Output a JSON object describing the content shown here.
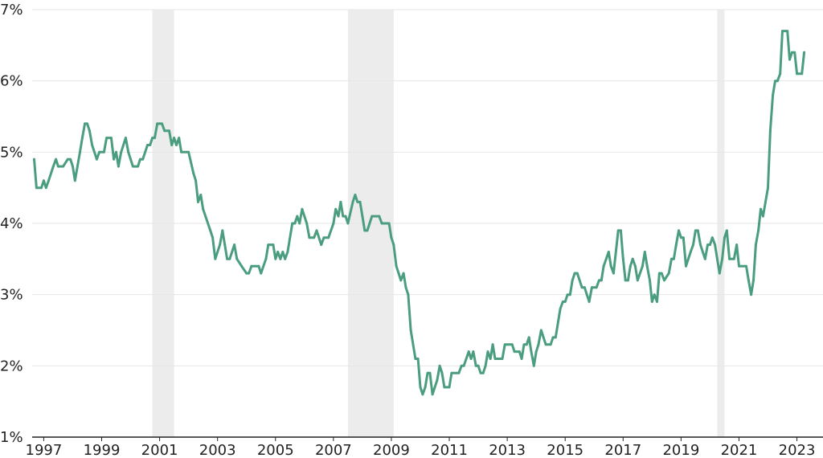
{
  "chart_data": {
    "type": "line",
    "title": "",
    "xlabel": "",
    "ylabel": "",
    "xlim": [
      1996.6,
      2023.9
    ],
    "ylim": [
      1,
      7
    ],
    "grid": true,
    "legend": "none",
    "y_ticks": [
      {
        "value": 1,
        "label": "1%"
      },
      {
        "value": 2,
        "label": "2%"
      },
      {
        "value": 3,
        "label": "3%"
      },
      {
        "value": 4,
        "label": "4%"
      },
      {
        "value": 5,
        "label": "5%"
      },
      {
        "value": 6,
        "label": "6%"
      },
      {
        "value": 7,
        "label": "7%"
      }
    ],
    "x_ticks": [
      {
        "value": 1997,
        "label": "1997"
      },
      {
        "value": 1999,
        "label": "1999"
      },
      {
        "value": 2001,
        "label": "2001"
      },
      {
        "value": 2003,
        "label": "2003"
      },
      {
        "value": 2005,
        "label": "2005"
      },
      {
        "value": 2007,
        "label": "2007"
      },
      {
        "value": 2009,
        "label": "2009"
      },
      {
        "value": 2011,
        "label": "2011"
      },
      {
        "value": 2013,
        "label": "2013"
      },
      {
        "value": 2015,
        "label": "2015"
      },
      {
        "value": 2017,
        "label": "2017"
      },
      {
        "value": 2019,
        "label": "2019"
      },
      {
        "value": 2021,
        "label": "2021"
      },
      {
        "value": 2023,
        "label": "2023"
      }
    ],
    "shaded_periods": [
      {
        "start": 2000.75,
        "end": 2001.5
      },
      {
        "start": 2007.5,
        "end": 2009.08
      },
      {
        "start": 2020.25,
        "end": 2020.5
      }
    ],
    "colors": {
      "line": "#4a9e7f",
      "shade": "#ececec",
      "grid": "#e6e6e6",
      "axis": "#222222"
    },
    "series": [
      {
        "points": [
          [
            1996.67,
            4.9
          ],
          [
            1996.75,
            4.5
          ],
          [
            1996.92,
            4.5
          ],
          [
            1997.0,
            4.6
          ],
          [
            1997.08,
            4.5
          ],
          [
            1997.17,
            4.6
          ],
          [
            1997.33,
            4.8
          ],
          [
            1997.42,
            4.9
          ],
          [
            1997.5,
            4.8
          ],
          [
            1997.67,
            4.8
          ],
          [
            1997.83,
            4.9
          ],
          [
            1997.92,
            4.9
          ],
          [
            1998.0,
            4.8
          ],
          [
            1998.08,
            4.6
          ],
          [
            1998.25,
            5.0
          ],
          [
            1998.33,
            5.2
          ],
          [
            1998.42,
            5.4
          ],
          [
            1998.5,
            5.4
          ],
          [
            1998.58,
            5.3
          ],
          [
            1998.67,
            5.1
          ],
          [
            1998.83,
            4.9
          ],
          [
            1998.92,
            5.0
          ],
          [
            1999.08,
            5.0
          ],
          [
            1999.17,
            5.2
          ],
          [
            1999.33,
            5.2
          ],
          [
            1999.42,
            4.9
          ],
          [
            1999.5,
            5.0
          ],
          [
            1999.58,
            4.8
          ],
          [
            1999.67,
            5.0
          ],
          [
            1999.83,
            5.2
          ],
          [
            1999.92,
            5.0
          ],
          [
            2000.0,
            4.9
          ],
          [
            2000.08,
            4.8
          ],
          [
            2000.25,
            4.8
          ],
          [
            2000.33,
            4.9
          ],
          [
            2000.42,
            4.9
          ],
          [
            2000.58,
            5.1
          ],
          [
            2000.67,
            5.1
          ],
          [
            2000.75,
            5.2
          ],
          [
            2000.83,
            5.2
          ],
          [
            2000.92,
            5.4
          ],
          [
            2001.0,
            5.4
          ],
          [
            2001.08,
            5.4
          ],
          [
            2001.17,
            5.3
          ],
          [
            2001.33,
            5.3
          ],
          [
            2001.42,
            5.1
          ],
          [
            2001.5,
            5.2
          ],
          [
            2001.58,
            5.1
          ],
          [
            2001.67,
            5.2
          ],
          [
            2001.75,
            5.0
          ],
          [
            2002.0,
            5.0
          ],
          [
            2002.17,
            4.7
          ],
          [
            2002.25,
            4.6
          ],
          [
            2002.33,
            4.3
          ],
          [
            2002.42,
            4.4
          ],
          [
            2002.5,
            4.2
          ],
          [
            2002.75,
            3.9
          ],
          [
            2002.83,
            3.8
          ],
          [
            2002.92,
            3.5
          ],
          [
            2003.08,
            3.7
          ],
          [
            2003.17,
            3.9
          ],
          [
            2003.25,
            3.7
          ],
          [
            2003.33,
            3.5
          ],
          [
            2003.42,
            3.5
          ],
          [
            2003.58,
            3.7
          ],
          [
            2003.67,
            3.5
          ],
          [
            2003.83,
            3.4
          ],
          [
            2004.0,
            3.3
          ],
          [
            2004.08,
            3.3
          ],
          [
            2004.17,
            3.4
          ],
          [
            2004.42,
            3.4
          ],
          [
            2004.5,
            3.3
          ],
          [
            2004.67,
            3.5
          ],
          [
            2004.75,
            3.7
          ],
          [
            2004.92,
            3.7
          ],
          [
            2005.0,
            3.5
          ],
          [
            2005.08,
            3.6
          ],
          [
            2005.17,
            3.5
          ],
          [
            2005.25,
            3.6
          ],
          [
            2005.33,
            3.5
          ],
          [
            2005.42,
            3.6
          ],
          [
            2005.58,
            4.0
          ],
          [
            2005.67,
            4.0
          ],
          [
            2005.75,
            4.1
          ],
          [
            2005.83,
            4.0
          ],
          [
            2005.92,
            4.2
          ],
          [
            2006.08,
            4.0
          ],
          [
            2006.17,
            3.8
          ],
          [
            2006.33,
            3.8
          ],
          [
            2006.42,
            3.9
          ],
          [
            2006.58,
            3.7
          ],
          [
            2006.67,
            3.8
          ],
          [
            2006.83,
            3.8
          ],
          [
            2007.0,
            4.0
          ],
          [
            2007.08,
            4.2
          ],
          [
            2007.17,
            4.1
          ],
          [
            2007.25,
            4.3
          ],
          [
            2007.33,
            4.1
          ],
          [
            2007.42,
            4.1
          ],
          [
            2007.5,
            4.0
          ],
          [
            2007.67,
            4.3
          ],
          [
            2007.75,
            4.4
          ],
          [
            2007.83,
            4.3
          ],
          [
            2007.92,
            4.3
          ],
          [
            2008.0,
            4.1
          ],
          [
            2008.08,
            3.9
          ],
          [
            2008.17,
            3.9
          ],
          [
            2008.25,
            4.0
          ],
          [
            2008.33,
            4.1
          ],
          [
            2008.58,
            4.1
          ],
          [
            2008.67,
            4.0
          ],
          [
            2008.92,
            4.0
          ],
          [
            2009.0,
            3.8
          ],
          [
            2009.08,
            3.7
          ],
          [
            2009.17,
            3.4
          ],
          [
            2009.25,
            3.3
          ],
          [
            2009.33,
            3.2
          ],
          [
            2009.42,
            3.3
          ],
          [
            2009.5,
            3.1
          ],
          [
            2009.58,
            3.0
          ],
          [
            2009.67,
            2.5
          ],
          [
            2009.75,
            2.3
          ],
          [
            2009.83,
            2.1
          ],
          [
            2009.92,
            2.1
          ],
          [
            2010.0,
            1.7
          ],
          [
            2010.08,
            1.6
          ],
          [
            2010.17,
            1.7
          ],
          [
            2010.25,
            1.9
          ],
          [
            2010.33,
            1.9
          ],
          [
            2010.42,
            1.6
          ],
          [
            2010.58,
            1.8
          ],
          [
            2010.67,
            2.0
          ],
          [
            2010.75,
            1.9
          ],
          [
            2010.83,
            1.7
          ],
          [
            2011.0,
            1.7
          ],
          [
            2011.08,
            1.9
          ],
          [
            2011.25,
            1.9
          ],
          [
            2011.33,
            1.9
          ],
          [
            2011.42,
            2.0
          ],
          [
            2011.5,
            2.0
          ],
          [
            2011.67,
            2.2
          ],
          [
            2011.75,
            2.1
          ],
          [
            2011.83,
            2.2
          ],
          [
            2011.92,
            2.0
          ],
          [
            2012.0,
            2.0
          ],
          [
            2012.08,
            1.9
          ],
          [
            2012.17,
            1.9
          ],
          [
            2012.25,
            2.0
          ],
          [
            2012.33,
            2.2
          ],
          [
            2012.42,
            2.1
          ],
          [
            2012.5,
            2.3
          ],
          [
            2012.58,
            2.1
          ],
          [
            2012.83,
            2.1
          ],
          [
            2012.92,
            2.3
          ],
          [
            2013.17,
            2.3
          ],
          [
            2013.25,
            2.2
          ],
          [
            2013.42,
            2.2
          ],
          [
            2013.5,
            2.1
          ],
          [
            2013.58,
            2.3
          ],
          [
            2013.67,
            2.3
          ],
          [
            2013.75,
            2.4
          ],
          [
            2013.83,
            2.2
          ],
          [
            2013.92,
            2.0
          ],
          [
            2014.0,
            2.2
          ],
          [
            2014.08,
            2.3
          ],
          [
            2014.17,
            2.5
          ],
          [
            2014.25,
            2.4
          ],
          [
            2014.33,
            2.3
          ],
          [
            2014.5,
            2.3
          ],
          [
            2014.58,
            2.4
          ],
          [
            2014.67,
            2.4
          ],
          [
            2014.83,
            2.8
          ],
          [
            2014.92,
            2.9
          ],
          [
            2015.0,
            2.9
          ],
          [
            2015.08,
            3.0
          ],
          [
            2015.17,
            3.0
          ],
          [
            2015.25,
            3.2
          ],
          [
            2015.33,
            3.3
          ],
          [
            2015.42,
            3.3
          ],
          [
            2015.58,
            3.1
          ],
          [
            2015.67,
            3.1
          ],
          [
            2015.75,
            3.0
          ],
          [
            2015.83,
            2.9
          ],
          [
            2015.92,
            3.1
          ],
          [
            2016.08,
            3.1
          ],
          [
            2016.17,
            3.2
          ],
          [
            2016.25,
            3.2
          ],
          [
            2016.33,
            3.4
          ],
          [
            2016.5,
            3.6
          ],
          [
            2016.58,
            3.4
          ],
          [
            2016.67,
            3.3
          ],
          [
            2016.83,
            3.9
          ],
          [
            2016.92,
            3.9
          ],
          [
            2017.0,
            3.5
          ],
          [
            2017.08,
            3.2
          ],
          [
            2017.17,
            3.2
          ],
          [
            2017.25,
            3.4
          ],
          [
            2017.33,
            3.5
          ],
          [
            2017.42,
            3.4
          ],
          [
            2017.5,
            3.2
          ],
          [
            2017.67,
            3.4
          ],
          [
            2017.75,
            3.6
          ],
          [
            2017.83,
            3.4
          ],
          [
            2017.92,
            3.2
          ],
          [
            2018.0,
            2.9
          ],
          [
            2018.08,
            3.0
          ],
          [
            2018.17,
            2.9
          ],
          [
            2018.25,
            3.3
          ],
          [
            2018.33,
            3.3
          ],
          [
            2018.42,
            3.2
          ],
          [
            2018.58,
            3.3
          ],
          [
            2018.67,
            3.5
          ],
          [
            2018.75,
            3.5
          ],
          [
            2018.83,
            3.7
          ],
          [
            2018.92,
            3.9
          ],
          [
            2019.0,
            3.8
          ],
          [
            2019.08,
            3.8
          ],
          [
            2019.17,
            3.4
          ],
          [
            2019.33,
            3.6
          ],
          [
            2019.42,
            3.7
          ],
          [
            2019.5,
            3.9
          ],
          [
            2019.58,
            3.9
          ],
          [
            2019.67,
            3.7
          ],
          [
            2019.83,
            3.5
          ],
          [
            2019.92,
            3.7
          ],
          [
            2020.0,
            3.7
          ],
          [
            2020.08,
            3.8
          ],
          [
            2020.17,
            3.7
          ],
          [
            2020.25,
            3.5
          ],
          [
            2020.33,
            3.3
          ],
          [
            2020.42,
            3.5
          ],
          [
            2020.5,
            3.8
          ],
          [
            2020.58,
            3.9
          ],
          [
            2020.67,
            3.5
          ],
          [
            2020.83,
            3.5
          ],
          [
            2020.92,
            3.7
          ],
          [
            2021.0,
            3.4
          ],
          [
            2021.25,
            3.4
          ],
          [
            2021.33,
            3.2
          ],
          [
            2021.42,
            3.0
          ],
          [
            2021.5,
            3.2
          ],
          [
            2021.58,
            3.7
          ],
          [
            2021.67,
            3.9
          ],
          [
            2021.75,
            4.2
          ],
          [
            2021.83,
            4.1
          ],
          [
            2022.0,
            4.5
          ],
          [
            2022.08,
            5.3
          ],
          [
            2022.17,
            5.8
          ],
          [
            2022.25,
            6.0
          ],
          [
            2022.33,
            6.0
          ],
          [
            2022.42,
            6.1
          ],
          [
            2022.5,
            6.7
          ],
          [
            2022.67,
            6.7
          ],
          [
            2022.75,
            6.3
          ],
          [
            2022.83,
            6.4
          ],
          [
            2022.92,
            6.4
          ],
          [
            2023.0,
            6.1
          ],
          [
            2023.17,
            6.1
          ],
          [
            2023.25,
            6.4
          ]
        ]
      }
    ]
  }
}
